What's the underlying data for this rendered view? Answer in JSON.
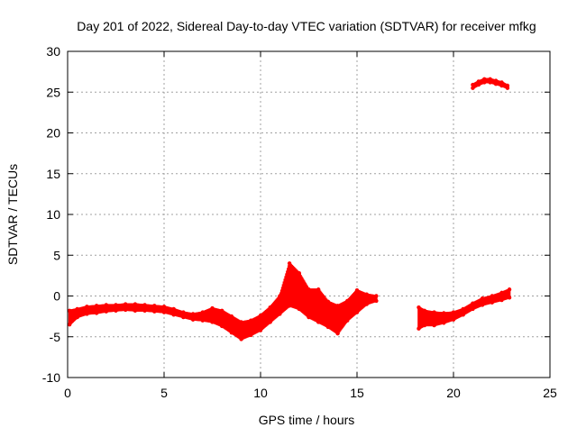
{
  "chart_data": {
    "type": "scatter",
    "title": "Day 201 of 2022, Sidereal Day-to-day VTEC variation (SDTVAR) for receiver mfkg",
    "xlabel": "GPS time / hours",
    "ylabel": "SDTVAR / TECUs",
    "xlim": [
      0,
      25
    ],
    "ylim": [
      -10,
      30
    ],
    "xticks": [
      0,
      5,
      10,
      15,
      20,
      25
    ],
    "yticks": [
      -10,
      -5,
      0,
      5,
      10,
      15,
      20,
      25,
      30
    ],
    "xtick_labels": [
      "0",
      "5",
      "10",
      "15",
      "20",
      "25"
    ],
    "ytick_labels": [
      "-10",
      "-5",
      "0",
      "5",
      "10",
      "15",
      "20",
      "25",
      "30"
    ],
    "grid": true,
    "marker_color": "#ff0000",
    "series": [
      {
        "name": "mfkg-band-main",
        "x": [
          0.1,
          0.5,
          1.0,
          1.5,
          2.0,
          2.5,
          3.0,
          3.5,
          4.0,
          4.5,
          5.0,
          5.5,
          6.0,
          6.5,
          7.0,
          7.5,
          8.0,
          8.5,
          9.0,
          9.5,
          10.0,
          10.5,
          11.0,
          11.5,
          12.0,
          12.5,
          13.0,
          13.5,
          14.0,
          14.5,
          15.0,
          15.5,
          16.0
        ],
        "y_low": [
          -3.5,
          -2.6,
          -2.2,
          -2.1,
          -1.9,
          -1.8,
          -1.7,
          -1.8,
          -1.8,
          -1.9,
          -2.0,
          -2.3,
          -2.6,
          -2.9,
          -3.0,
          -3.2,
          -3.7,
          -4.5,
          -5.3,
          -4.8,
          -4.2,
          -3.2,
          -2.2,
          -1.2,
          -1.6,
          -2.6,
          -3.2,
          -3.8,
          -4.6,
          -3.0,
          -2.0,
          -1.0,
          -0.6
        ],
        "y_high": [
          -1.8,
          -1.6,
          -1.3,
          -1.2,
          -1.1,
          -1.1,
          -1.0,
          -1.0,
          -1.1,
          -1.2,
          -1.3,
          -1.6,
          -2.0,
          -2.2,
          -2.0,
          -1.5,
          -1.8,
          -2.5,
          -3.2,
          -3.0,
          -2.4,
          -1.4,
          0.0,
          4.0,
          2.8,
          0.8,
          0.8,
          -0.7,
          -1.2,
          -0.6,
          0.7,
          0.2,
          0.0
        ]
      },
      {
        "name": "mfkg-band-late",
        "x": [
          18.2,
          18.5,
          19.0,
          19.5,
          20.0,
          20.5,
          21.0,
          21.5,
          22.0,
          22.5,
          22.9
        ],
        "y_low": [
          -4.0,
          -3.6,
          -3.6,
          -3.3,
          -2.9,
          -2.3,
          -1.6,
          -1.1,
          -0.8,
          -0.5,
          -0.2
        ],
        "y_high": [
          -1.4,
          -1.8,
          -2.0,
          -2.1,
          -2.0,
          -1.6,
          -0.9,
          -0.3,
          0.0,
          0.4,
          0.8
        ]
      },
      {
        "name": "mfkg-upper-arc",
        "x": [
          21.0,
          21.3,
          21.6,
          21.9,
          22.2,
          22.5,
          22.8
        ],
        "y_low": [
          25.5,
          25.9,
          26.2,
          26.2,
          26.0,
          25.8,
          25.5
        ],
        "y_high": [
          25.9,
          26.3,
          26.6,
          26.6,
          26.4,
          26.2,
          25.8
        ]
      }
    ]
  }
}
